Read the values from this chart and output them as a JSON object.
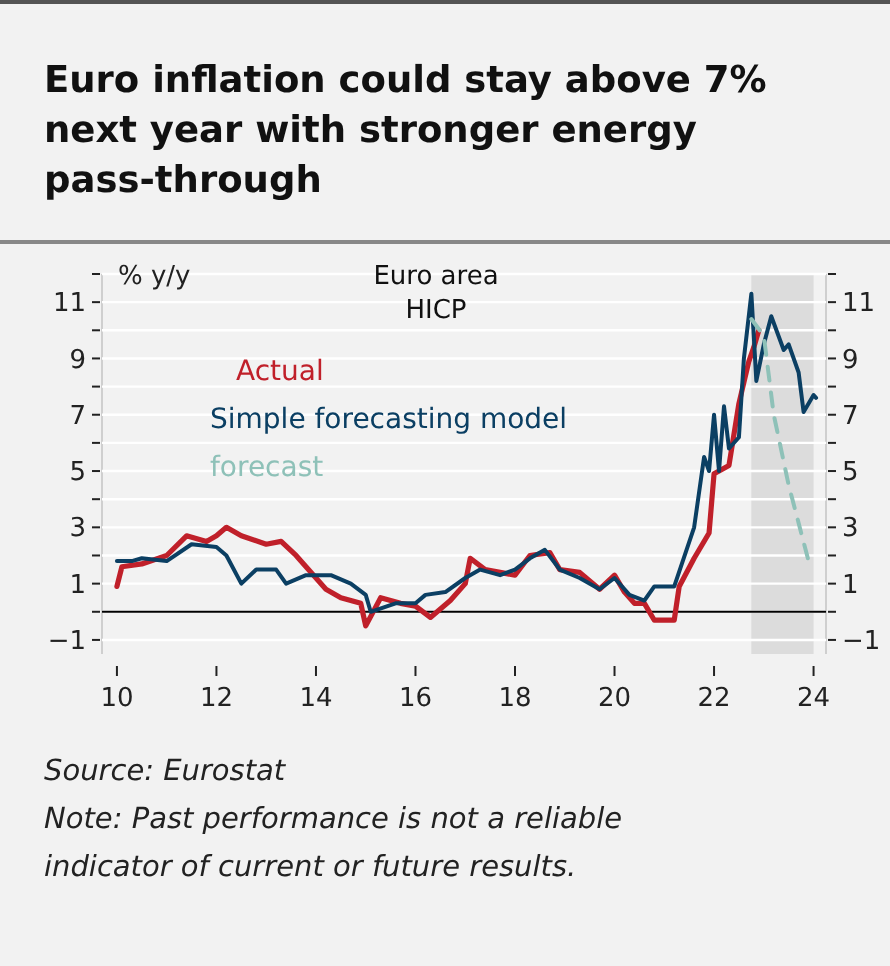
{
  "chart_data": {
    "type": "line",
    "title": "Euro inflation could stay above 7% next year with stronger energy pass-through",
    "ylabel": "% y/y",
    "annotations": [
      "Euro area HICP",
      "Source: Eurostat",
      "Note: Past performance is not a reliable indicator of current or future results."
    ],
    "xlim": [
      9.7,
      24.25
    ],
    "xticks": [
      10,
      12,
      14,
      16,
      18,
      20,
      22,
      24
    ],
    "ylim": [
      -1.5,
      12
    ],
    "yticks": [
      {
        "value": -1,
        "label": "−1"
      },
      {
        "value": 0,
        "label": null
      },
      1,
      {
        "value": 2,
        "label": null
      },
      3,
      {
        "value": 4,
        "label": null
      },
      5,
      {
        "value": 6,
        "label": null
      },
      7,
      {
        "value": 8,
        "label": null
      },
      9,
      {
        "value": 10,
        "label": null
      },
      11,
      {
        "value": 12,
        "label": null
      }
    ],
    "y2lim": [
      -1.5,
      12
    ],
    "y2ticks": [
      {
        "value": -1,
        "label": "−1"
      },
      {
        "value": 0,
        "label": null
      },
      1,
      {
        "value": 2,
        "label": null
      },
      3,
      {
        "value": 4,
        "label": null
      },
      5,
      {
        "value": 6,
        "label": null
      },
      7,
      {
        "value": 8,
        "label": null
      },
      9,
      {
        "value": 10,
        "label": null
      },
      11,
      {
        "value": 12,
        "label": null
      }
    ],
    "grid": "y",
    "legend": "top left",
    "ref_lines": [
      {
        "axis": "y",
        "value": 0,
        "color": "#000000"
      }
    ],
    "bands": [
      {
        "axis": "x",
        "from": 22.75,
        "to": 24,
        "color": "#dcdcdc"
      }
    ],
    "series": [
      {
        "name": "Actual",
        "color": "#c0202a",
        "x": [
          10.0,
          10.1,
          10.5,
          11.0,
          11.4,
          11.8,
          12.0,
          12.2,
          12.5,
          13.0,
          13.3,
          13.6,
          13.8,
          14.0,
          14.2,
          14.5,
          14.9,
          15.0,
          15.3,
          15.7,
          16.0,
          16.3,
          16.7,
          17.0,
          17.1,
          17.4,
          17.7,
          18.0,
          18.3,
          18.7,
          18.9,
          19.3,
          19.7,
          20.0,
          20.2,
          20.4,
          20.6,
          20.8,
          21.2,
          21.3,
          21.6,
          21.9,
          22.0,
          22.3,
          22.5,
          22.7,
          22.8,
          22.9
        ],
        "values": [
          0.9,
          1.6,
          1.7,
          2.0,
          2.7,
          2.5,
          2.7,
          3.0,
          2.7,
          2.4,
          2.5,
          2.0,
          1.6,
          1.2,
          0.8,
          0.5,
          0.3,
          -0.5,
          0.5,
          0.3,
          0.2,
          -0.2,
          0.4,
          1.0,
          1.9,
          1.5,
          1.4,
          1.3,
          2.0,
          2.1,
          1.5,
          1.4,
          0.8,
          1.3,
          0.7,
          0.3,
          0.3,
          -0.3,
          -0.3,
          0.9,
          1.9,
          2.8,
          4.9,
          5.2,
          7.4,
          8.9,
          9.4,
          10.0
        ]
      },
      {
        "name": "Simple forecasting model",
        "color": "#0b3f63",
        "x": [
          10.0,
          10.3,
          10.5,
          11.0,
          11.5,
          12.0,
          12.2,
          12.5,
          12.8,
          13.2,
          13.4,
          13.8,
          14.3,
          14.7,
          15.0,
          15.1,
          15.6,
          16.0,
          16.2,
          16.6,
          17.0,
          17.3,
          17.7,
          18.0,
          18.3,
          18.6,
          18.9,
          19.3,
          19.7,
          20.0,
          20.3,
          20.6,
          20.8,
          21.2,
          21.6,
          21.8,
          21.9,
          22.0,
          22.1,
          22.2,
          22.3,
          22.5,
          22.6,
          22.75,
          22.85,
          23.0,
          23.15,
          23.4,
          23.5,
          23.7,
          23.8,
          24.0,
          24.05
        ],
        "values": [
          1.8,
          1.8,
          1.9,
          1.8,
          2.4,
          2.3,
          2.0,
          1.0,
          1.5,
          1.5,
          1.0,
          1.3,
          1.3,
          1.0,
          0.6,
          0.0,
          0.3,
          0.3,
          0.6,
          0.7,
          1.2,
          1.5,
          1.3,
          1.5,
          1.9,
          2.2,
          1.5,
          1.2,
          0.8,
          1.2,
          0.6,
          0.4,
          0.9,
          0.9,
          3.0,
          5.5,
          5.0,
          7.0,
          5.0,
          7.3,
          5.8,
          6.2,
          9.0,
          11.3,
          8.2,
          9.5,
          10.5,
          9.3,
          9.5,
          8.5,
          7.1,
          7.7,
          7.6
        ]
      },
      {
        "name": "forecast",
        "color": "#8ec1b8",
        "line_style": "dashed",
        "x": [
          22.75,
          23.0,
          23.2,
          23.5,
          23.9
        ],
        "values": [
          10.4,
          9.8,
          7.0,
          4.5,
          1.8
        ]
      }
    ]
  }
}
